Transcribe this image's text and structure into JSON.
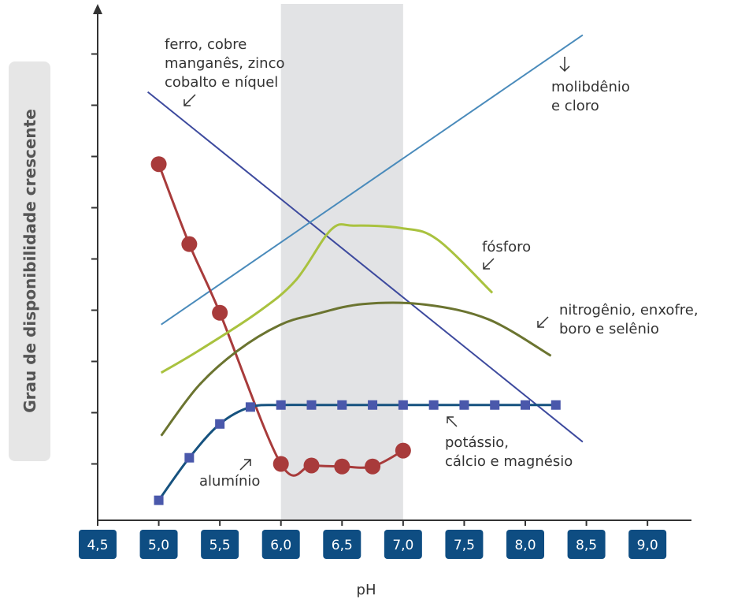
{
  "chart_data": {
    "type": "line",
    "x_label": "pH",
    "y_label": "Grau de disponibilidade crescente",
    "xlim": [
      4.5,
      9.36
    ],
    "ylim": [
      -0.1,
      9.9
    ],
    "xticks": [
      {
        "value": 4.5,
        "label": "4,5"
      },
      {
        "value": 5.0,
        "label": "5,0"
      },
      {
        "value": 5.5,
        "label": "5,5"
      },
      {
        "value": 6.0,
        "label": "6,0"
      },
      {
        "value": 6.5,
        "label": "6,5"
      },
      {
        "value": 7.0,
        "label": "7,0"
      },
      {
        "value": 7.5,
        "label": "7,5"
      },
      {
        "value": 8.0,
        "label": "8,0"
      },
      {
        "value": 8.5,
        "label": "8,5"
      },
      {
        "value": 9.0,
        "label": "9,0"
      }
    ],
    "yticks": [
      1,
      2,
      3,
      4,
      5,
      6,
      7,
      8,
      9
    ],
    "shaded_range": [
      6.0,
      7.0
    ],
    "series": [
      {
        "label": [
          "ferro, cobre",
          "manganês, zinco",
          "cobalto e níquel"
        ],
        "color": "#3d4a9e",
        "smooth": false,
        "marker": null,
        "x": [
          4.91,
          8.47
        ],
        "values": [
          8.26,
          1.43
        ]
      },
      {
        "label": [
          "molibdênio",
          "e cloro"
        ],
        "color": "#4a8bbb",
        "smooth": false,
        "marker": null,
        "x": [
          5.02,
          8.47
        ],
        "values": [
          3.72,
          9.37
        ]
      },
      {
        "label": [
          "alumínio"
        ],
        "color": "#a83b3b",
        "smooth": true,
        "marker": "circle",
        "marker_color": "#a83b3b",
        "x": [
          5.0,
          5.25,
          5.5,
          6.0,
          6.25,
          6.5,
          6.75,
          7.0
        ],
        "values": [
          6.85,
          5.29,
          3.95,
          1.0,
          0.97,
          0.95,
          0.95,
          1.26
        ]
      },
      {
        "label": [
          "potássio,",
          "cálcio e magnésio"
        ],
        "color": "#16527f",
        "smooth": true,
        "marker": "square",
        "marker_color": "#4a58ab",
        "x": [
          5.0,
          5.25,
          5.5,
          5.75,
          6.0,
          6.25,
          6.5,
          6.75,
          7.0,
          7.25,
          7.5,
          7.75,
          8.0,
          8.25
        ],
        "values": [
          0.29,
          1.12,
          1.78,
          2.11,
          2.15,
          2.15,
          2.15,
          2.15,
          2.15,
          2.15,
          2.15,
          2.15,
          2.15,
          2.15
        ]
      },
      {
        "label": [
          "fósforo"
        ],
        "color": "#a9c23f",
        "smooth": true,
        "marker": null,
        "x": [
          5.02,
          5.32,
          5.8,
          6.12,
          6.41,
          6.6,
          6.99,
          7.28,
          7.73
        ],
        "values": [
          2.78,
          3.2,
          3.94,
          4.58,
          5.57,
          5.65,
          5.6,
          5.38,
          4.34
        ]
      },
      {
        "label": [
          "nitrogênio, enxofre,",
          "boro e selênio"
        ],
        "color": "#6b7430",
        "smooth": true,
        "marker": null,
        "x": [
          5.02,
          5.32,
          5.64,
          5.99,
          6.28,
          6.67,
          7.18,
          7.7,
          8.21
        ],
        "values": [
          1.55,
          2.51,
          3.2,
          3.71,
          3.92,
          4.12,
          4.11,
          3.82,
          3.11
        ]
      }
    ]
  }
}
